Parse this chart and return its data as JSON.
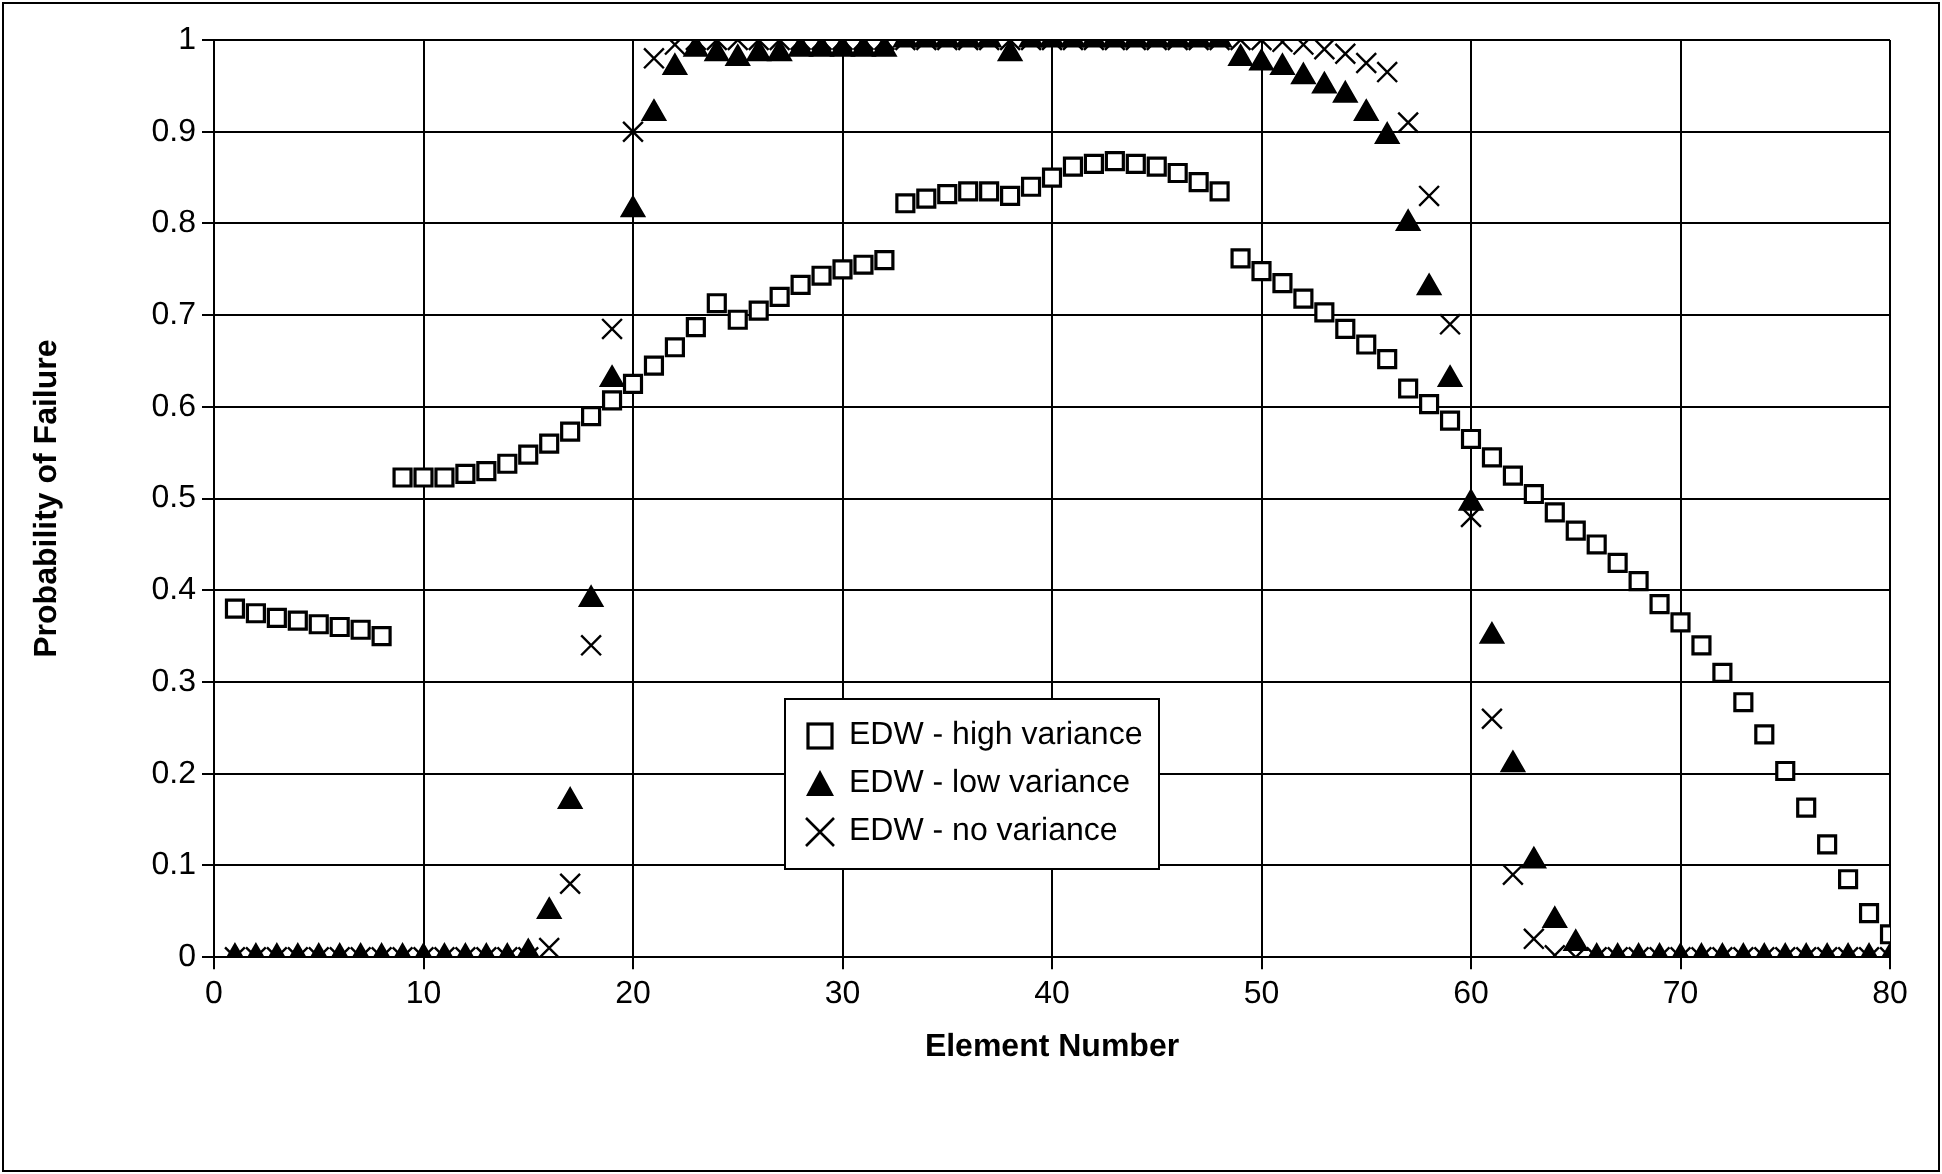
{
  "chart_data": {
    "type": "scatter",
    "xlabel": "Element Number",
    "ylabel": "Probability of Failure",
    "x": [
      1,
      2,
      3,
      4,
      5,
      6,
      7,
      8,
      9,
      10,
      11,
      12,
      13,
      14,
      15,
      16,
      17,
      18,
      19,
      20,
      21,
      22,
      23,
      24,
      25,
      26,
      27,
      28,
      29,
      30,
      31,
      32,
      33,
      34,
      35,
      36,
      37,
      38,
      39,
      40,
      41,
      42,
      43,
      44,
      45,
      46,
      47,
      48,
      49,
      50,
      51,
      52,
      53,
      54,
      55,
      56,
      57,
      58,
      59,
      60,
      61,
      62,
      63,
      64,
      65,
      66,
      67,
      68,
      69,
      70,
      71,
      72,
      73,
      74,
      75,
      76,
      77,
      78,
      79,
      80
    ],
    "series": [
      {
        "name": "EDW - high variance",
        "color": "#000000",
        "marker": "square",
        "values": [
          0.38,
          0.375,
          0.37,
          0.367,
          0.363,
          0.36,
          0.357,
          0.35,
          0.523,
          0.523,
          0.523,
          0.527,
          0.53,
          0.538,
          0.548,
          0.56,
          0.573,
          0.59,
          0.607,
          0.625,
          0.645,
          0.665,
          0.687,
          0.713,
          0.695,
          0.705,
          0.72,
          0.733,
          0.743,
          0.75,
          0.755,
          0.76,
          0.822,
          0.827,
          0.832,
          0.835,
          0.835,
          0.83,
          0.84,
          0.85,
          0.862,
          0.865,
          0.868,
          0.865,
          0.862,
          0.855,
          0.845,
          0.835,
          0.762,
          0.748,
          0.735,
          0.718,
          0.703,
          0.685,
          0.668,
          0.652,
          0.62,
          0.603,
          0.585,
          0.565,
          0.545,
          0.525,
          0.505,
          0.485,
          0.465,
          0.45,
          0.43,
          0.41,
          0.385,
          0.365,
          0.34,
          0.31,
          0.278,
          0.243,
          0.203,
          0.163,
          0.123,
          0.085,
          0.048,
          0.025
        ]
      },
      {
        "name": "EDW - low variance",
        "color": "#000000",
        "marker": "triangle",
        "values": [
          0,
          0,
          0,
          0,
          0,
          0,
          0,
          0,
          0,
          0,
          0,
          0,
          0,
          0,
          0.005,
          0.05,
          0.17,
          0.39,
          0.63,
          0.815,
          0.92,
          0.97,
          0.99,
          0.985,
          0.98,
          0.985,
          0.985,
          0.99,
          0.99,
          0.99,
          0.99,
          0.99,
          1,
          1,
          1,
          1,
          1,
          0.985,
          1,
          1,
          1,
          1,
          1,
          1,
          1,
          1,
          1,
          1,
          0.98,
          0.975,
          0.97,
          0.96,
          0.95,
          0.94,
          0.92,
          0.895,
          0.8,
          0.73,
          0.63,
          0.495,
          0.35,
          0.21,
          0.105,
          0.04,
          0.015,
          0,
          0,
          0,
          0,
          0,
          0,
          0,
          0,
          0,
          0,
          0,
          0,
          0,
          0,
          0
        ]
      },
      {
        "name": "EDW - no variance",
        "color": "#000000",
        "marker": "cross",
        "values": [
          0,
          0,
          0,
          0,
          0,
          0,
          0,
          0,
          0,
          0,
          0,
          0,
          0,
          0,
          0,
          0.01,
          0.08,
          0.34,
          0.685,
          0.9,
          0.98,
          0.995,
          1,
          1,
          1,
          1,
          1,
          1,
          1,
          1,
          1,
          1,
          1,
          1,
          1,
          1,
          1,
          1,
          1,
          1,
          1,
          1,
          1,
          1,
          1,
          1,
          1,
          1,
          1,
          1,
          0.998,
          0.995,
          0.99,
          0.985,
          0.975,
          0.965,
          0.91,
          0.83,
          0.69,
          0.48,
          0.26,
          0.09,
          0.02,
          0.002,
          0,
          0,
          0,
          0,
          0,
          0,
          0,
          0,
          0,
          0,
          0,
          0,
          0,
          0,
          0,
          0
        ]
      }
    ],
    "xlim": [
      0,
      80
    ],
    "xticks": [
      0,
      10,
      20,
      30,
      40,
      50,
      60,
      70,
      80
    ],
    "ylim": [
      0,
      1
    ],
    "yticks": [
      0,
      0.1,
      0.2,
      0.3,
      0.4,
      0.5,
      0.6,
      0.7,
      0.8,
      0.9,
      1
    ],
    "grid": true,
    "legend": "center"
  }
}
